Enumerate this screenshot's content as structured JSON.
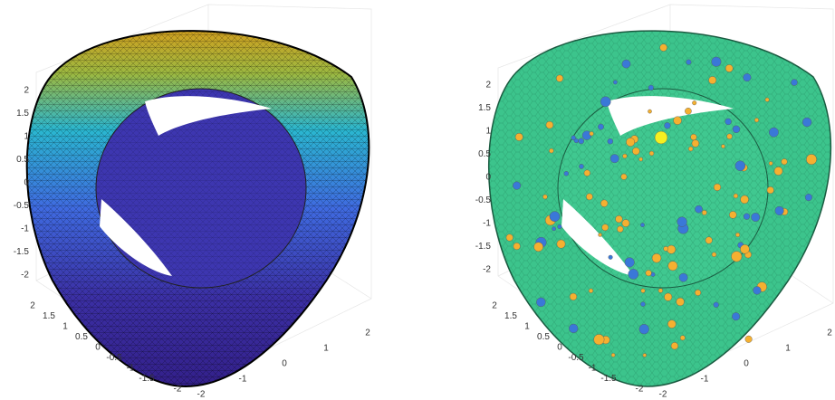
{
  "panels": [
    {
      "z_ticks": [
        "2",
        "1.5",
        "1",
        "0.5",
        "0",
        "-0.5",
        "-1",
        "-1.5",
        "-2"
      ],
      "y_ticks": [
        "2",
        "1.5",
        "1",
        "0.5",
        "0",
        "-0.5",
        "-1",
        "-1.5",
        "-2"
      ],
      "x_ticks": [
        "2",
        "1",
        "0",
        "-1",
        "-2"
      ]
    },
    {
      "z_ticks": [
        "2",
        "1.5",
        "1",
        "0.5",
        "0",
        "-0.5",
        "-1",
        "-1.5",
        "-2"
      ],
      "y_ticks": [
        "2",
        "1.5",
        "1",
        "0.5",
        "0",
        "-0.5",
        "-1",
        "-1.5",
        "-2"
      ],
      "x_ticks": [
        "2",
        "1",
        "0",
        "-1",
        "-2"
      ]
    }
  ]
}
